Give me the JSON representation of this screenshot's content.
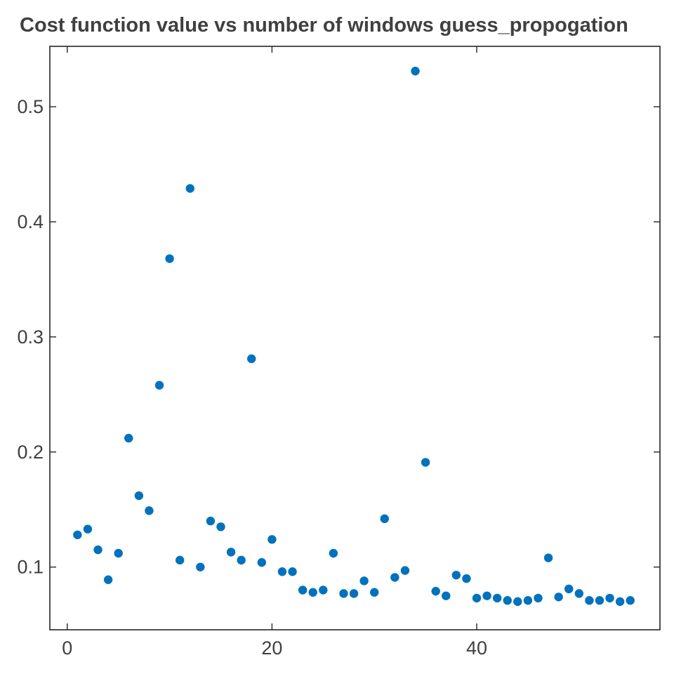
{
  "chart_data": {
    "type": "scatter",
    "title": "Cost function value vs number of windows guess_propogation",
    "xlabel": "",
    "ylabel": "",
    "xlim": [
      -1.7,
      57.9
    ],
    "ylim": [
      0.0455,
      0.5525
    ],
    "xticks": [
      0,
      20,
      40
    ],
    "yticks": [
      0.1,
      0.2,
      0.3,
      0.4,
      0.5
    ],
    "xtick_labels": [
      "0",
      "20",
      "40"
    ],
    "ytick_labels": [
      "0.1",
      "0.2",
      "0.3",
      "0.4",
      "0.5"
    ],
    "grid": false,
    "marker_color": "#0072BD",
    "points": [
      [
        1,
        0.128
      ],
      [
        2,
        0.133
      ],
      [
        3,
        0.115
      ],
      [
        4,
        0.089
      ],
      [
        5,
        0.112
      ],
      [
        6,
        0.212
      ],
      [
        7,
        0.162
      ],
      [
        8,
        0.149
      ],
      [
        9,
        0.258
      ],
      [
        10,
        0.368
      ],
      [
        11,
        0.106
      ],
      [
        12,
        0.429
      ],
      [
        13,
        0.1
      ],
      [
        14,
        0.14
      ],
      [
        15,
        0.135
      ],
      [
        16,
        0.113
      ],
      [
        17,
        0.106
      ],
      [
        18,
        0.281
      ],
      [
        19,
        0.104
      ],
      [
        20,
        0.124
      ],
      [
        21,
        0.096
      ],
      [
        22,
        0.096
      ],
      [
        23,
        0.08
      ],
      [
        24,
        0.078
      ],
      [
        25,
        0.08
      ],
      [
        26,
        0.112
      ],
      [
        27,
        0.077
      ],
      [
        28,
        0.077
      ],
      [
        29,
        0.088
      ],
      [
        30,
        0.078
      ],
      [
        31,
        0.142
      ],
      [
        32,
        0.091
      ],
      [
        33,
        0.097
      ],
      [
        34,
        0.531
      ],
      [
        35,
        0.191
      ],
      [
        36,
        0.079
      ],
      [
        37,
        0.075
      ],
      [
        38,
        0.093
      ],
      [
        39,
        0.09
      ],
      [
        40,
        0.073
      ],
      [
        41,
        0.075
      ],
      [
        42,
        0.073
      ],
      [
        43,
        0.071
      ],
      [
        44,
        0.07
      ],
      [
        45,
        0.071
      ],
      [
        46,
        0.073
      ],
      [
        47,
        0.108
      ],
      [
        48,
        0.074
      ],
      [
        49,
        0.081
      ],
      [
        50,
        0.077
      ],
      [
        51,
        0.071
      ],
      [
        52,
        0.071
      ],
      [
        53,
        0.073
      ],
      [
        54,
        0.07
      ],
      [
        55,
        0.071
      ]
    ]
  }
}
